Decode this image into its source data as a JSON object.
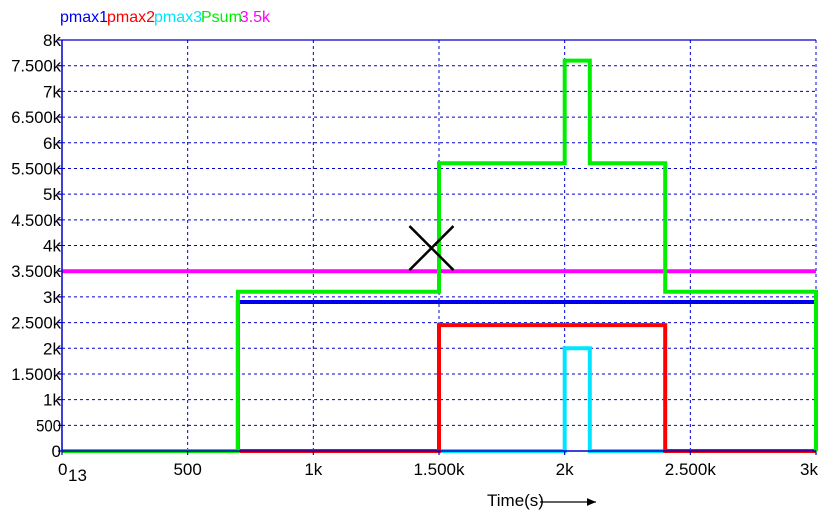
{
  "chart_data": {
    "type": "line",
    "title": "",
    "xlabel": "Time(s)",
    "ylabel": "",
    "xlim": [
      0,
      3000
    ],
    "ylim": [
      0,
      8000
    ],
    "grid": true,
    "legend_position": "top-left",
    "x_ticks": [
      {
        "value": 0,
        "label": "0"
      },
      {
        "value": 500,
        "label": "500"
      },
      {
        "value": 1000,
        "label": "1k"
      },
      {
        "value": 1500,
        "label": "1.500k"
      },
      {
        "value": 2000,
        "label": "2k"
      },
      {
        "value": 2500,
        "label": "2.500k"
      },
      {
        "value": 3000,
        "label": "3k"
      }
    ],
    "y_ticks": [
      {
        "value": 0,
        "label": "0"
      },
      {
        "value": 500,
        "label": "500"
      },
      {
        "value": 1000,
        "label": "1k"
      },
      {
        "value": 1500,
        "label": "1.500k"
      },
      {
        "value": 2000,
        "label": "2k"
      },
      {
        "value": 2500,
        "label": "2.500k"
      },
      {
        "value": 3000,
        "label": "3k"
      },
      {
        "value": 3500,
        "label": "3.500k"
      },
      {
        "value": 4000,
        "label": "4k"
      },
      {
        "value": 4500,
        "label": "4.500k"
      },
      {
        "value": 5000,
        "label": "5k"
      },
      {
        "value": 5500,
        "label": "5.500k"
      },
      {
        "value": 6000,
        "label": "6k"
      },
      {
        "value": 6500,
        "label": "6.500k"
      },
      {
        "value": 7000,
        "label": "7k"
      },
      {
        "value": 7500,
        "label": "7.500k"
      },
      {
        "value": 8000,
        "label": "8k"
      }
    ],
    "series": [
      {
        "name": "pmax1",
        "color": "#0000ee",
        "points": [
          [
            0,
            0
          ],
          [
            700,
            0
          ],
          [
            700,
            2900
          ],
          [
            3000,
            2900
          ]
        ]
      },
      {
        "name": "pmax2",
        "color": "#ff0000",
        "points": [
          [
            0,
            0
          ],
          [
            1500,
            0
          ],
          [
            1500,
            2450
          ],
          [
            2400,
            2450
          ],
          [
            2400,
            0
          ],
          [
            3000,
            0
          ]
        ]
      },
      {
        "name": "pmax3",
        "color": "#00e5ff",
        "points": [
          [
            0,
            0
          ],
          [
            2000,
            0
          ],
          [
            2000,
            2000
          ],
          [
            2100,
            2000
          ],
          [
            2100,
            0
          ],
          [
            3000,
            0
          ]
        ]
      },
      {
        "name": "Psum",
        "color": "#00ee00",
        "points": [
          [
            0,
            0
          ],
          [
            700,
            0
          ],
          [
            700,
            3100
          ],
          [
            1500,
            3100
          ],
          [
            1500,
            5600
          ],
          [
            2000,
            5600
          ],
          [
            2000,
            7600
          ],
          [
            2100,
            7600
          ],
          [
            2100,
            5600
          ],
          [
            2400,
            5600
          ],
          [
            2400,
            3100
          ],
          [
            3000,
            3100
          ],
          [
            3000,
            0
          ]
        ]
      },
      {
        "name": "3.5k",
        "color": "#ff00ff",
        "points": [
          [
            0,
            3500
          ],
          [
            3000,
            3500
          ]
        ]
      }
    ],
    "annotations": [
      {
        "type": "cross-marker",
        "x": 1470,
        "y": 3950,
        "color": "#000000"
      },
      {
        "type": "text",
        "text": "13",
        "x": 50,
        "y": -500
      }
    ]
  }
}
